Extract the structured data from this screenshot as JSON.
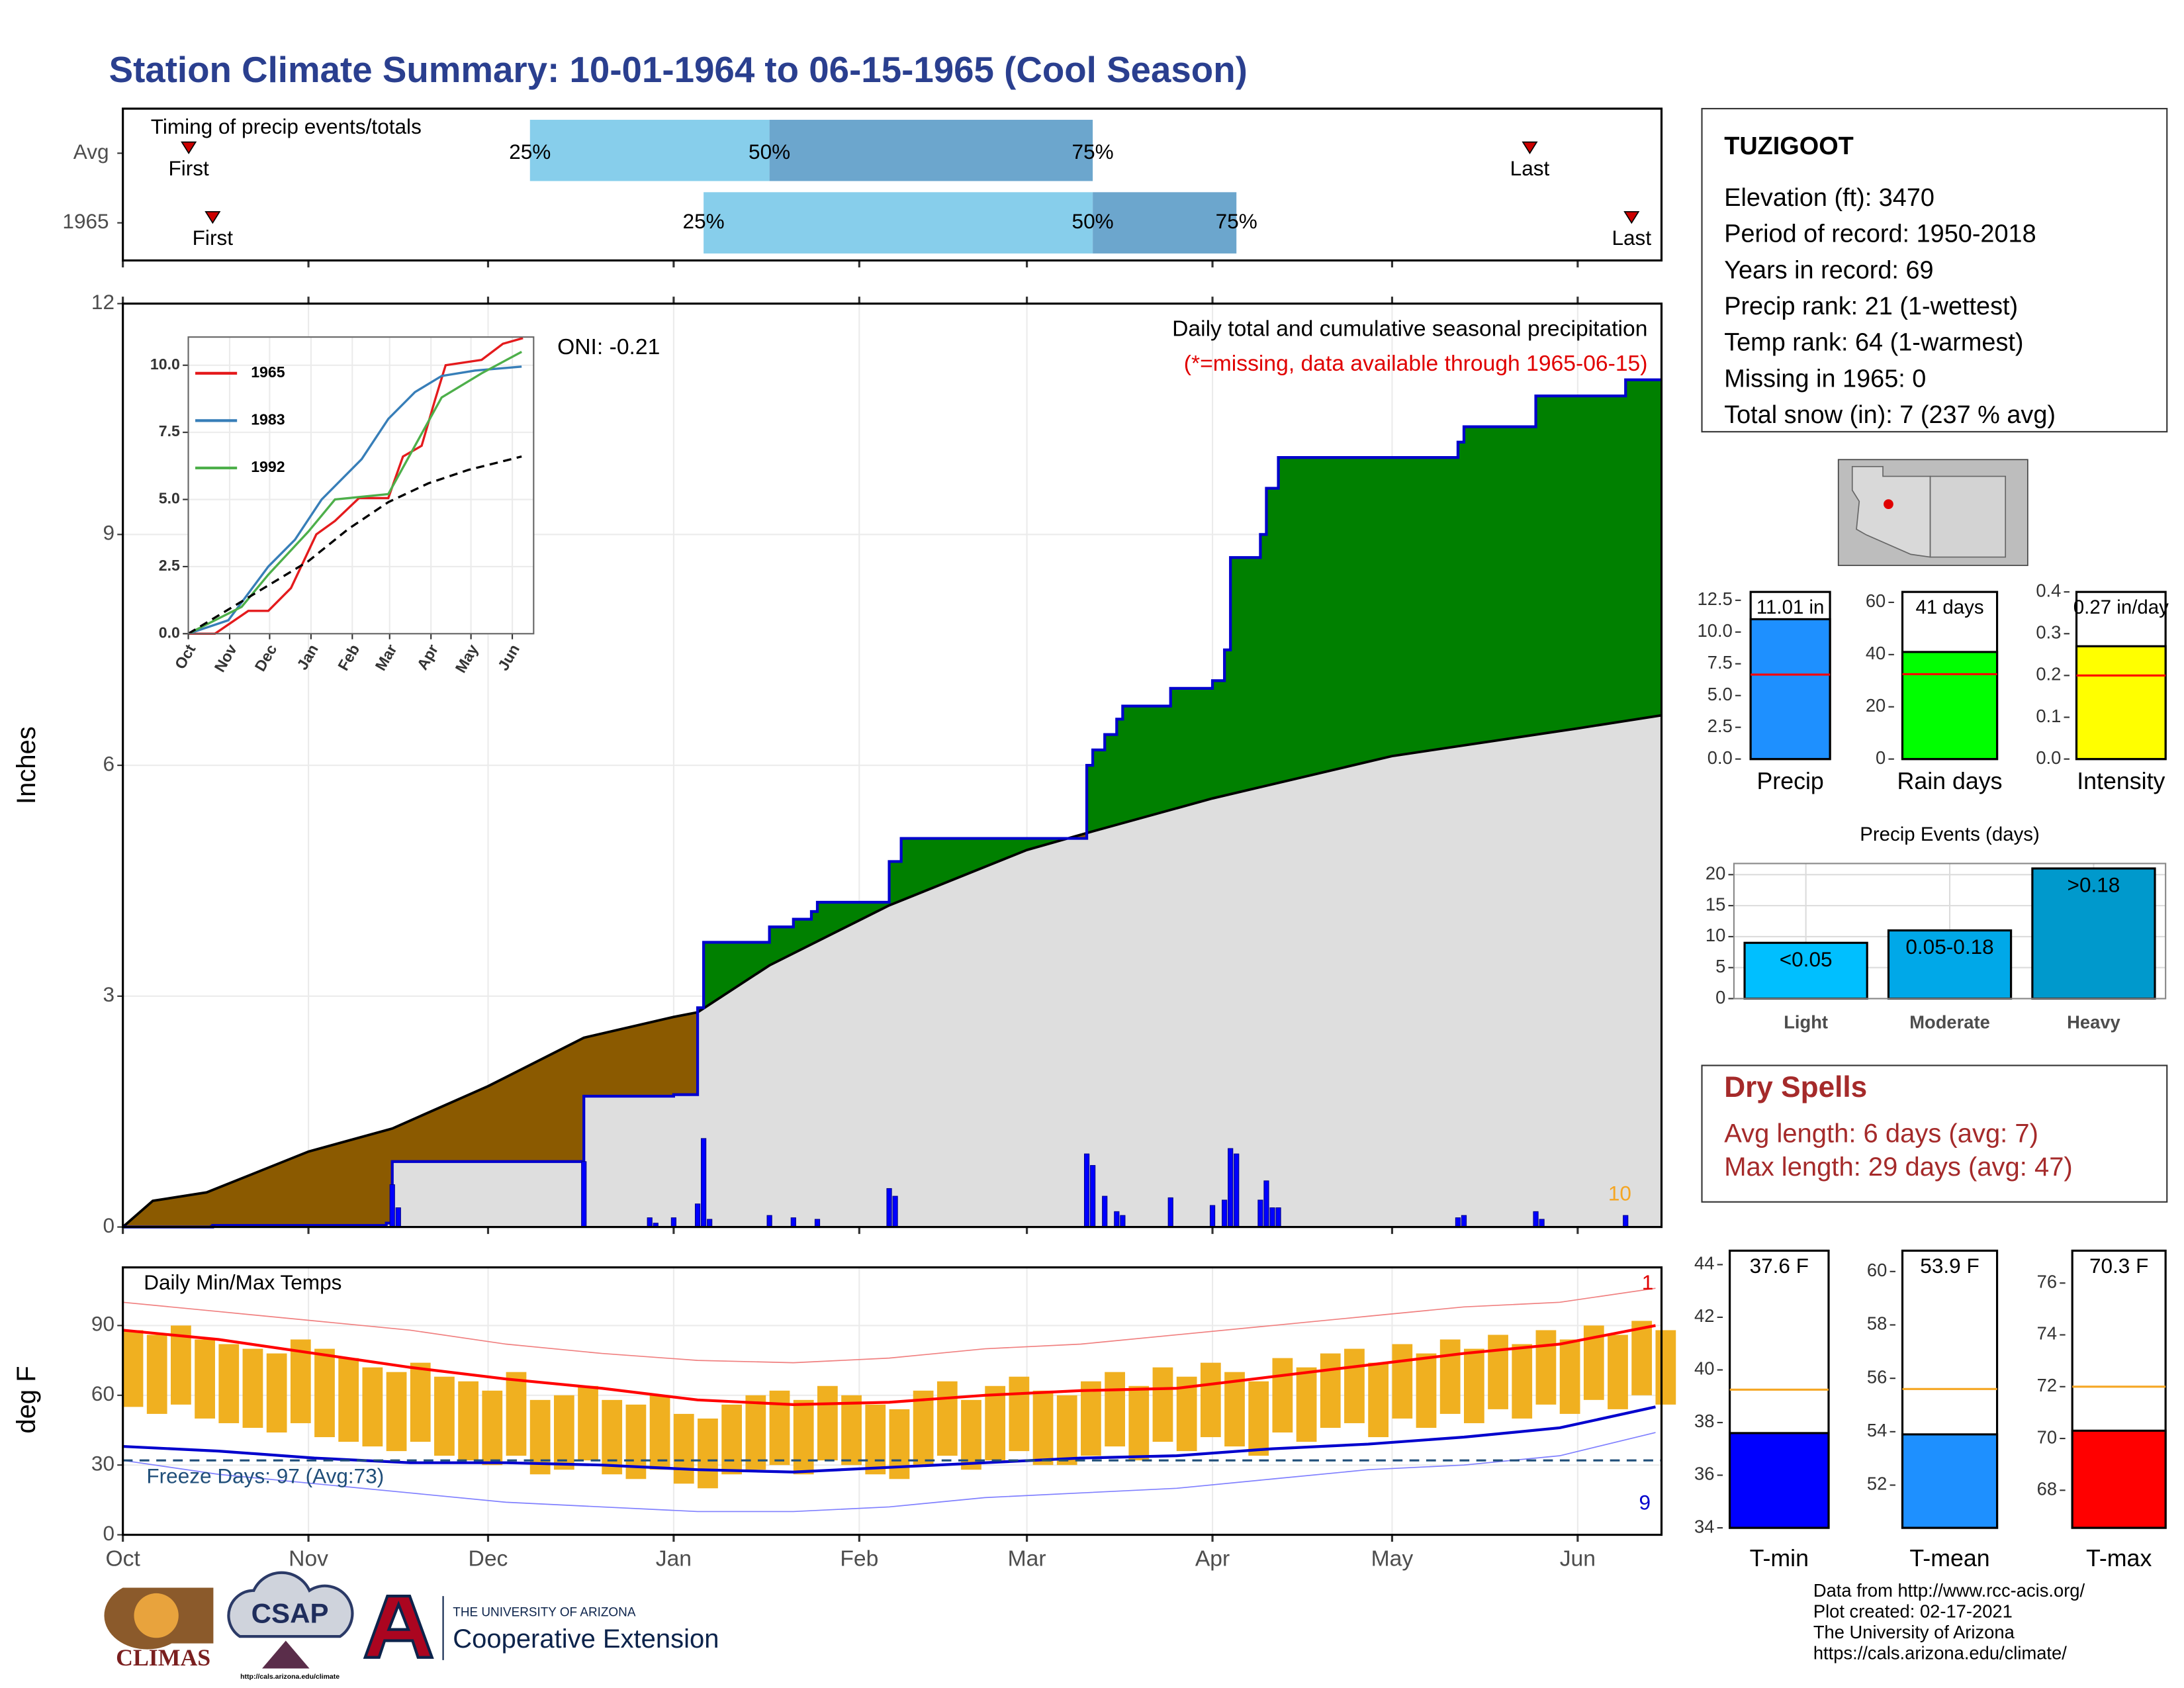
{
  "title": "Station Climate Summary: 10-01-1964 to 06-15-1965 (Cool Season)",
  "station": {
    "name": "TUZIGOOT",
    "lines": [
      "Elevation (ft): 3470",
      "Period of record: 1950-2018",
      "Years in record: 69",
      "Precip rank: 21 (1-wettest)",
      "Temp rank: 64 (1-warmest)",
      "Missing in 1965: 0",
      "Total snow (in): 7 (237 % avg)"
    ]
  },
  "dry_spells": {
    "title": "Dry Spells",
    "lines": [
      "Avg length: 6 days (avg: 7)",
      "Max length: 29 days (avg: 47)"
    ]
  },
  "footer": [
    "Data from http://www.rcc-acis.org/",
    "Plot created: 02-17-2021",
    "The University of Arizona",
    "https://cals.arizona.edu/climate/"
  ],
  "logos": {
    "climas": "CLIMAS",
    "csap": "CSAP",
    "csap_url": "http://cals.arizona.edu/climate",
    "university": "THE UNIVERSITY OF ARIZONA",
    "extension": "Cooperative Extension"
  },
  "chart_data": [
    {
      "type": "timing",
      "title": "Timing of precip events/totals",
      "xlim": [
        0,
        257
      ],
      "xticks": [
        0,
        31,
        61,
        92,
        123,
        151,
        182,
        212,
        243
      ],
      "categories": [
        "Avg",
        "1965"
      ],
      "colors": [
        "#87ceeb",
        "#6ca6cd"
      ],
      "series": [
        {
          "name": "First",
          "color": "#cc0000",
          "values": [
            11,
            15
          ]
        },
        {
          "name": "25%",
          "values": [
            68,
            97
          ]
        },
        {
          "name": "50%",
          "values": [
            108,
            162
          ]
        },
        {
          "name": "75%",
          "values": [
            162,
            186
          ]
        },
        {
          "name": "Last",
          "color": "#cc0000",
          "values": [
            235,
            252
          ]
        }
      ]
    },
    {
      "type": "step_area",
      "title": "Daily total and cumulative seasonal precipitation",
      "subtitle": "(*=missing, data available through 1965-06-15)",
      "annotations": [
        "ONI: -0.21",
        "10"
      ],
      "ylabel": "Inches",
      "xlim": [
        0,
        257
      ],
      "xticks": [
        0,
        31,
        61,
        92,
        123,
        151,
        182,
        212,
        243
      ],
      "ylim": [
        0,
        12
      ],
      "yticks": [
        0,
        3,
        6,
        9,
        12
      ],
      "grid": true,
      "fill_above": "#008000",
      "fill_below": "#8b5a00",
      "fill_avg": "#dedede",
      "series": [
        {
          "color": "#0000cd",
          "x": [
            0,
            15,
            44,
            45,
            77,
            92,
            96,
            97,
            108,
            112,
            115,
            116,
            128,
            130,
            161,
            162,
            164,
            166,
            167,
            175,
            182,
            184,
            185,
            190,
            191,
            193,
            223,
            224,
            236,
            251
          ],
          "values": [
            0,
            0.02,
            0.05,
            0.85,
            1.7,
            1.72,
            2.85,
            3.7,
            3.9,
            4.0,
            4.1,
            4.22,
            4.75,
            5.05,
            6.0,
            6.2,
            6.4,
            6.6,
            6.77,
            7.0,
            7.1,
            7.5,
            8.7,
            9.0,
            9.6,
            10.0,
            10.2,
            10.4,
            10.8,
            11.01
          ]
        },
        {
          "color": "#000000",
          "x": [
            0,
            5,
            14,
            31,
            45,
            61,
            77,
            92,
            96,
            108,
            128,
            151,
            161,
            182,
            212,
            243,
            257
          ],
          "values": [
            0,
            0.34,
            0.45,
            0.98,
            1.28,
            1.83,
            2.46,
            2.73,
            2.79,
            3.4,
            4.18,
            4.9,
            5.12,
            5.57,
            6.12,
            6.48,
            6.65
          ]
        },
        {
          "color": "#0000ff",
          "x": [
            15,
            45,
            46,
            77,
            88,
            89,
            92,
            96,
            97,
            98,
            108,
            112,
            116,
            128,
            129,
            161,
            162,
            164,
            166,
            167,
            175,
            182,
            184,
            185,
            186,
            190,
            191,
            192,
            193,
            223,
            224,
            236,
            237,
            251
          ],
          "values": [
            0.02,
            0.55,
            0.25,
            0.85,
            0.12,
            0.05,
            0.12,
            0.3,
            1.15,
            0.1,
            0.15,
            0.12,
            0.1,
            0.5,
            0.4,
            0.95,
            0.8,
            0.4,
            0.2,
            0.15,
            0.38,
            0.28,
            0.35,
            1.02,
            0.95,
            0.35,
            0.6,
            0.25,
            0.25,
            0.12,
            0.15,
            0.2,
            0.1,
            0.15
          ]
        }
      ]
    },
    {
      "type": "line",
      "xlim": [
        0,
        259
      ],
      "ylim": [
        0,
        11.05
      ],
      "legend": "upper left",
      "xticks": [
        {
          "value": 0,
          "label": "Oct"
        },
        {
          "value": 31,
          "label": "Nov"
        },
        {
          "value": 61,
          "label": "Dec"
        },
        {
          "value": 92,
          "label": "Jan"
        },
        {
          "value": 123,
          "label": "Feb"
        },
        {
          "value": 151,
          "label": "Mar"
        },
        {
          "value": 182,
          "label": "Apr"
        },
        {
          "value": 212,
          "label": "May"
        },
        {
          "value": 243,
          "label": "Jun"
        }
      ],
      "yticks": [
        {
          "value": 0,
          "label": "0.0"
        },
        2.5,
        {
          "value": 5,
          "label": "5.0"
        },
        7.5,
        {
          "value": 10,
          "label": "10.0"
        }
      ],
      "series": [
        {
          "name": "1965",
          "color": "#e41a1c",
          "x": [
            0,
            20,
            45,
            60,
            77,
            96,
            110,
            128,
            150,
            161,
            175,
            185,
            193,
            220,
            236,
            251
          ],
          "values": [
            0,
            0,
            0.85,
            0.85,
            1.7,
            3.7,
            4.2,
            5.05,
            5.05,
            6.6,
            7.0,
            8.7,
            10.0,
            10.2,
            10.8,
            11.01
          ]
        },
        {
          "name": "1983",
          "color": "#377eb8",
          "x": [
            0,
            30,
            45,
            60,
            80,
            100,
            130,
            150,
            170,
            190,
            215,
            250
          ],
          "values": [
            0,
            0.5,
            1.5,
            2.5,
            3.5,
            5.0,
            6.5,
            8.0,
            9.0,
            9.6,
            9.8,
            9.95
          ]
        },
        {
          "name": "1992",
          "color": "#4daf4a",
          "x": [
            0,
            40,
            60,
            90,
            110,
            150,
            170,
            190,
            220,
            250
          ],
          "values": [
            0,
            1.0,
            2.2,
            3.8,
            5.0,
            5.2,
            7.0,
            8.8,
            9.7,
            10.5
          ]
        },
        {
          "color": "#000000",
          "linestyle": "dashed",
          "x": [
            0,
            30,
            60,
            90,
            120,
            150,
            180,
            210,
            250
          ],
          "values": [
            0,
            0.9,
            1.8,
            2.7,
            3.9,
            4.9,
            5.6,
            6.1,
            6.6
          ]
        }
      ]
    },
    {
      "type": "range_bar",
      "title": "Daily Min/Max Temps",
      "ylabel": "deg F",
      "annotations": [
        "Freeze Days: 97 (Avg:73)",
        "1",
        "9"
      ],
      "xlim": [
        0,
        257
      ],
      "xticks": [
        {
          "value": 0,
          "label": "Oct"
        },
        {
          "value": 31,
          "label": "Nov"
        },
        {
          "value": 61,
          "label": "Dec"
        },
        {
          "value": 92,
          "label": "Jan"
        },
        {
          "value": 123,
          "label": "Feb"
        },
        {
          "value": 151,
          "label": "Mar"
        },
        {
          "value": 182,
          "label": "Apr"
        },
        {
          "value": 212,
          "label": "May"
        },
        {
          "value": 243,
          "label": "Jun"
        }
      ],
      "ylim": [
        0,
        115
      ],
      "yticks": [
        0,
        30,
        60,
        90
      ],
      "grid": true,
      "freeze_line": 32,
      "freeze_color": "#1f4e79",
      "bars": {
        "color": "#f0b020",
        "x": [
          0,
          4,
          8,
          12,
          16,
          20,
          24,
          28,
          32,
          36,
          40,
          44,
          48,
          52,
          56,
          60,
          64,
          68,
          72,
          76,
          80,
          84,
          88,
          92,
          96,
          100,
          104,
          108,
          112,
          116,
          120,
          124,
          128,
          132,
          136,
          140,
          144,
          148,
          152,
          156,
          160,
          164,
          168,
          172,
          176,
          180,
          184,
          188,
          192,
          196,
          200,
          204,
          208,
          212,
          216,
          220,
          224,
          228,
          232,
          236,
          240,
          244,
          248,
          252,
          256
        ],
        "high": [
          88,
          86,
          90,
          84,
          82,
          80,
          78,
          84,
          80,
          76,
          72,
          70,
          74,
          68,
          66,
          62,
          70,
          58,
          60,
          64,
          58,
          56,
          60,
          52,
          50,
          56,
          60,
          62,
          58,
          64,
          60,
          56,
          54,
          62,
          66,
          58,
          64,
          68,
          62,
          60,
          66,
          70,
          64,
          72,
          68,
          74,
          70,
          66,
          76,
          72,
          78,
          80,
          74,
          82,
          78,
          84,
          80,
          86,
          82,
          88,
          84,
          90,
          86,
          92,
          88
        ],
        "low": [
          55,
          52,
          56,
          50,
          48,
          46,
          44,
          48,
          42,
          40,
          38,
          36,
          40,
          34,
          32,
          30,
          34,
          26,
          28,
          32,
          26,
          24,
          28,
          22,
          20,
          26,
          28,
          30,
          26,
          32,
          30,
          26,
          24,
          30,
          34,
          28,
          32,
          36,
          30,
          30,
          34,
          38,
          32,
          40,
          36,
          42,
          38,
          34,
          44,
          40,
          46,
          48,
          42,
          50,
          46,
          52,
          48,
          54,
          50,
          56,
          52,
          58,
          54,
          60,
          56
        ]
      },
      "series": [
        {
          "color": "#ff0000",
          "linewidth": 2,
          "x": [
            0,
            16,
            32,
            48,
            64,
            80,
            96,
            112,
            128,
            144,
            160,
            176,
            192,
            208,
            224,
            240,
            256
          ],
          "values": [
            88,
            84,
            78,
            72,
            67,
            63,
            58,
            56,
            57,
            60,
            62,
            63,
            68,
            73,
            78,
            82,
            90
          ]
        },
        {
          "color": "#0000cd",
          "linewidth": 2,
          "x": [
            0,
            16,
            32,
            48,
            64,
            80,
            96,
            112,
            128,
            144,
            160,
            176,
            192,
            208,
            224,
            240,
            256
          ],
          "values": [
            38,
            36,
            33,
            31,
            31,
            30,
            28,
            27,
            29,
            31,
            33,
            34,
            37,
            39,
            42,
            46,
            55
          ]
        },
        {
          "color": "#f08080",
          "linewidth": 0.8,
          "x": [
            0,
            16,
            32,
            48,
            64,
            80,
            96,
            112,
            128,
            144,
            160,
            176,
            192,
            208,
            224,
            240,
            256
          ],
          "values": [
            100,
            96,
            92,
            88,
            82,
            78,
            75,
            74,
            76,
            80,
            82,
            86,
            90,
            94,
            98,
            100,
            106
          ]
        },
        {
          "color": "#8080ff",
          "linewidth": 0.8,
          "x": [
            0,
            16,
            32,
            48,
            64,
            80,
            96,
            112,
            128,
            144,
            160,
            176,
            192,
            208,
            224,
            240,
            256
          ],
          "values": [
            32,
            26,
            22,
            18,
            14,
            12,
            10,
            10,
            12,
            16,
            18,
            20,
            24,
            28,
            30,
            34,
            44
          ]
        }
      ]
    },
    {
      "type": "bar",
      "categories": [
        "Precip"
      ],
      "values": [
        11.01
      ],
      "value_labels": [
        "11.01 in"
      ],
      "color": "#1e90ff",
      "average": 6.65,
      "average_color": "#ff0000",
      "ylim": [
        0,
        13.16
      ],
      "yticks": [
        {
          "value": 0,
          "label": "0.0"
        },
        2.5,
        {
          "value": 5,
          "label": "5.0"
        },
        7.5,
        {
          "value": 10,
          "label": "10.0"
        },
        12.5
      ]
    },
    {
      "type": "bar",
      "categories": [
        "Rain days"
      ],
      "values": [
        41
      ],
      "value_labels": [
        "41 days"
      ],
      "color": "#00ff00",
      "average": 32.5,
      "average_color": "#ff0000",
      "ylim": [
        0,
        64
      ],
      "yticks": [
        0,
        20,
        40,
        60
      ]
    },
    {
      "type": "bar",
      "categories": [
        "Intensity"
      ],
      "values": [
        0.27
      ],
      "value_labels": [
        "0.27 in/day"
      ],
      "color": "#ffff00",
      "average": 0.2,
      "average_color": "#ff0000",
      "ylim": [
        0,
        0.4
      ],
      "yticks": [
        {
          "value": 0,
          "label": "0.0"
        },
        0.1,
        0.2,
        0.3,
        0.4
      ]
    },
    {
      "type": "bar",
      "title": "Precip Events (days)",
      "categories": [
        "Light",
        "Moderate",
        "Heavy"
      ],
      "bin_labels": [
        "<0.05",
        "0.05-0.18",
        ">0.18"
      ],
      "values": [
        9,
        11,
        21
      ],
      "colors": [
        "#00bfff",
        "#00a8e8",
        "#0099cc"
      ],
      "ylim": [
        0,
        21.8
      ],
      "yticks": [
        0,
        5,
        10,
        15,
        20
      ],
      "grid": true
    },
    {
      "type": "bar",
      "categories": [
        "T-min"
      ],
      "values": [
        37.6
      ],
      "value_labels": [
        "37.6 F"
      ],
      "color": "#0000ff",
      "average": 39.25,
      "average_color": "#f5a623",
      "ylim": [
        34,
        44.53
      ],
      "yticks": [
        34,
        36,
        38,
        40,
        42,
        44
      ]
    },
    {
      "type": "bar",
      "categories": [
        "T-mean"
      ],
      "values": [
        53.9
      ],
      "value_labels": [
        "53.9 F"
      ],
      "color": "#1e90ff",
      "average": 55.6,
      "average_color": "#f5a623",
      "ylim": [
        50.4,
        60.78
      ],
      "yticks": [
        52,
        54,
        56,
        58,
        60
      ]
    },
    {
      "type": "bar",
      "categories": [
        "T-max"
      ],
      "values": [
        70.3
      ],
      "value_labels": [
        "70.3 F"
      ],
      "color": "#ff0000",
      "average": 72.0,
      "average_color": "#f5a623",
      "ylim": [
        66.55,
        77.25
      ],
      "yticks": [
        68,
        70,
        72,
        74,
        76
      ]
    }
  ]
}
